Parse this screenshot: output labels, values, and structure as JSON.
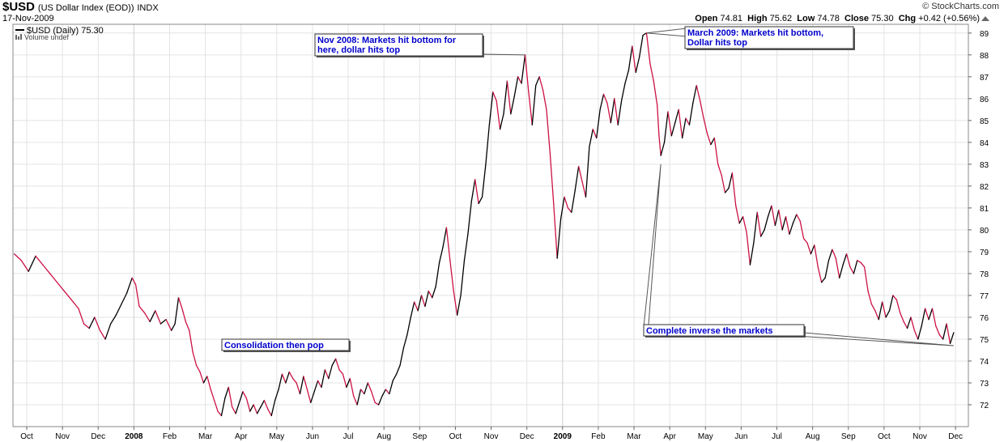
{
  "header": {
    "symbol": "$USD",
    "name": "(US Dollar Index (EOD))",
    "exchange": "INDX",
    "date": "17-Nov-2009",
    "credit": "© StockCharts.com",
    "ohlc": {
      "open_label": "Open",
      "open": "74.81",
      "high_label": "High",
      "high": "75.62",
      "low_label": "Low",
      "low": "74.78",
      "close_label": "Close",
      "close": "75.30",
      "chg_label": "Chg",
      "chg": "+0.42 (+0.56%)"
    }
  },
  "legend": {
    "series_label": "$USD (Daily) 75.30",
    "volume_label": "Volume undef"
  },
  "chart_data": {
    "type": "line",
    "title": "$USD (US Dollar Index (EOD)) INDX",
    "xlabel": "",
    "ylabel": "",
    "ylim": [
      71.0,
      89.4
    ],
    "y_ticks": [
      72,
      73,
      74,
      75,
      76,
      77,
      78,
      79,
      80,
      81,
      82,
      83,
      84,
      85,
      86,
      87,
      88,
      89
    ],
    "x_ticks": [
      {
        "label": "Oct",
        "month": 0,
        "bold": false
      },
      {
        "label": "Nov",
        "month": 1,
        "bold": false
      },
      {
        "label": "Dec",
        "month": 2,
        "bold": false
      },
      {
        "label": "2008",
        "month": 3,
        "bold": true
      },
      {
        "label": "Feb",
        "month": 4,
        "bold": false
      },
      {
        "label": "Mar",
        "month": 5,
        "bold": false
      },
      {
        "label": "Apr",
        "month": 6,
        "bold": false
      },
      {
        "label": "May",
        "month": 7,
        "bold": false
      },
      {
        "label": "Jun",
        "month": 8,
        "bold": false
      },
      {
        "label": "Jul",
        "month": 9,
        "bold": false
      },
      {
        "label": "Aug",
        "month": 10,
        "bold": false
      },
      {
        "label": "Sep",
        "month": 11,
        "bold": false
      },
      {
        "label": "Oct",
        "month": 12,
        "bold": false
      },
      {
        "label": "Nov",
        "month": 13,
        "bold": false
      },
      {
        "label": "Dec",
        "month": 14,
        "bold": false
      },
      {
        "label": "2009",
        "month": 15,
        "bold": true
      },
      {
        "label": "Feb",
        "month": 16,
        "bold": false
      },
      {
        "label": "Mar",
        "month": 17,
        "bold": false
      },
      {
        "label": "Apr",
        "month": 18,
        "bold": false
      },
      {
        "label": "May",
        "month": 19,
        "bold": false
      },
      {
        "label": "Jun",
        "month": 20,
        "bold": false
      },
      {
        "label": "Jul",
        "month": 21,
        "bold": false
      },
      {
        "label": "Aug",
        "month": 22,
        "bold": false
      },
      {
        "label": "Sep",
        "month": 23,
        "bold": false
      },
      {
        "label": "Oct",
        "month": 24,
        "bold": false
      },
      {
        "label": "Nov",
        "month": 25,
        "bold": false
      },
      {
        "label": "Dec",
        "month": 26,
        "bold": false
      }
    ],
    "series": [
      {
        "name": "$USD (Daily)",
        "color_up": "#000000",
        "color_down": "#cc1144",
        "points": [
          [
            -0.35,
            78.9
          ],
          [
            -0.15,
            78.6
          ],
          [
            0.05,
            78.1
          ],
          [
            0.25,
            78.8
          ],
          [
            0.45,
            78.4
          ],
          [
            0.65,
            78.0
          ],
          [
            0.85,
            77.6
          ],
          [
            1.05,
            77.2
          ],
          [
            1.25,
            76.8
          ],
          [
            1.45,
            76.4
          ],
          [
            1.6,
            75.7
          ],
          [
            1.75,
            75.5
          ],
          [
            1.9,
            76.0
          ],
          [
            2.05,
            75.4
          ],
          [
            2.2,
            75.0
          ],
          [
            2.35,
            75.7
          ],
          [
            2.5,
            76.1
          ],
          [
            2.65,
            76.6
          ],
          [
            2.8,
            77.1
          ],
          [
            2.95,
            77.8
          ],
          [
            3.05,
            77.5
          ],
          [
            3.15,
            76.5
          ],
          [
            3.3,
            76.2
          ],
          [
            3.45,
            75.8
          ],
          [
            3.6,
            76.3
          ],
          [
            3.75,
            75.7
          ],
          [
            3.9,
            75.9
          ],
          [
            4.05,
            75.4
          ],
          [
            4.15,
            75.7
          ],
          [
            4.25,
            76.9
          ],
          [
            4.35,
            76.4
          ],
          [
            4.45,
            75.8
          ],
          [
            4.55,
            75.4
          ],
          [
            4.65,
            74.4
          ],
          [
            4.75,
            73.8
          ],
          [
            4.85,
            73.5
          ],
          [
            4.95,
            73.0
          ],
          [
            5.05,
            73.3
          ],
          [
            5.15,
            72.7
          ],
          [
            5.25,
            72.2
          ],
          [
            5.35,
            71.7
          ],
          [
            5.45,
            71.5
          ],
          [
            5.55,
            72.3
          ],
          [
            5.65,
            72.8
          ],
          [
            5.75,
            71.9
          ],
          [
            5.85,
            71.6
          ],
          [
            5.95,
            72.1
          ],
          [
            6.05,
            72.6
          ],
          [
            6.15,
            72.3
          ],
          [
            6.25,
            71.7
          ],
          [
            6.35,
            72.0
          ],
          [
            6.45,
            71.6
          ],
          [
            6.55,
            71.9
          ],
          [
            6.65,
            72.2
          ],
          [
            6.75,
            71.8
          ],
          [
            6.85,
            71.5
          ],
          [
            6.95,
            72.2
          ],
          [
            7.05,
            72.7
          ],
          [
            7.15,
            73.4
          ],
          [
            7.25,
            73.0
          ],
          [
            7.35,
            73.5
          ],
          [
            7.45,
            73.2
          ],
          [
            7.55,
            73.0
          ],
          [
            7.65,
            72.5
          ],
          [
            7.75,
            73.3
          ],
          [
            7.85,
            72.7
          ],
          [
            7.95,
            72.1
          ],
          [
            8.05,
            72.6
          ],
          [
            8.15,
            73.1
          ],
          [
            8.25,
            72.8
          ],
          [
            8.35,
            73.6
          ],
          [
            8.45,
            73.2
          ],
          [
            8.55,
            73.8
          ],
          [
            8.65,
            74.1
          ],
          [
            8.75,
            73.6
          ],
          [
            8.85,
            73.4
          ],
          [
            8.95,
            72.8
          ],
          [
            9.05,
            73.2
          ],
          [
            9.15,
            72.4
          ],
          [
            9.25,
            72.0
          ],
          [
            9.35,
            72.7
          ],
          [
            9.45,
            72.5
          ],
          [
            9.55,
            73.0
          ],
          [
            9.65,
            72.6
          ],
          [
            9.75,
            72.1
          ],
          [
            9.85,
            72.0
          ],
          [
            9.95,
            72.4
          ],
          [
            10.05,
            72.7
          ],
          [
            10.15,
            72.5
          ],
          [
            10.25,
            73.1
          ],
          [
            10.35,
            73.4
          ],
          [
            10.45,
            73.8
          ],
          [
            10.55,
            74.6
          ],
          [
            10.65,
            75.2
          ],
          [
            10.75,
            76.0
          ],
          [
            10.85,
            76.7
          ],
          [
            10.95,
            76.3
          ],
          [
            11.05,
            77.0
          ],
          [
            11.15,
            76.5
          ],
          [
            11.25,
            77.2
          ],
          [
            11.35,
            76.9
          ],
          [
            11.45,
            77.4
          ],
          [
            11.55,
            78.5
          ],
          [
            11.65,
            79.2
          ],
          [
            11.75,
            80.1
          ],
          [
            11.85,
            78.6
          ],
          [
            11.95,
            77.2
          ],
          [
            12.05,
            76.1
          ],
          [
            12.15,
            77.0
          ],
          [
            12.25,
            78.6
          ],
          [
            12.35,
            79.8
          ],
          [
            12.45,
            81.3
          ],
          [
            12.55,
            82.3
          ],
          [
            12.65,
            81.2
          ],
          [
            12.75,
            81.5
          ],
          [
            12.85,
            83.0
          ],
          [
            12.95,
            84.8
          ],
          [
            13.05,
            86.3
          ],
          [
            13.15,
            85.9
          ],
          [
            13.25,
            84.6
          ],
          [
            13.35,
            85.3
          ],
          [
            13.45,
            86.8
          ],
          [
            13.55,
            85.3
          ],
          [
            13.65,
            86.1
          ],
          [
            13.75,
            87.0
          ],
          [
            13.85,
            86.7
          ],
          [
            13.95,
            88.0
          ],
          [
            14.05,
            86.3
          ],
          [
            14.15,
            84.8
          ],
          [
            14.25,
            86.6
          ],
          [
            14.35,
            87.0
          ],
          [
            14.45,
            86.4
          ],
          [
            14.55,
            85.5
          ],
          [
            14.65,
            83.5
          ],
          [
            14.75,
            81.2
          ],
          [
            14.85,
            78.7
          ],
          [
            14.95,
            80.5
          ],
          [
            15.05,
            81.5
          ],
          [
            15.15,
            81.0
          ],
          [
            15.25,
            80.8
          ],
          [
            15.35,
            81.8
          ],
          [
            15.45,
            82.9
          ],
          [
            15.55,
            82.2
          ],
          [
            15.65,
            81.5
          ],
          [
            15.75,
            83.8
          ],
          [
            15.85,
            84.6
          ],
          [
            15.95,
            84.2
          ],
          [
            16.05,
            85.5
          ],
          [
            16.15,
            86.2
          ],
          [
            16.25,
            85.8
          ],
          [
            16.35,
            84.9
          ],
          [
            16.45,
            86.0
          ],
          [
            16.55,
            84.8
          ],
          [
            16.65,
            85.9
          ],
          [
            16.75,
            86.7
          ],
          [
            16.85,
            87.3
          ],
          [
            16.95,
            88.4
          ],
          [
            17.05,
            87.2
          ],
          [
            17.15,
            87.9
          ],
          [
            17.25,
            88.9
          ],
          [
            17.35,
            89.0
          ],
          [
            17.45,
            87.6
          ],
          [
            17.55,
            86.8
          ],
          [
            17.65,
            85.7
          ],
          [
            17.7,
            84.3
          ],
          [
            17.75,
            83.4
          ],
          [
            17.85,
            84.0
          ],
          [
            17.95,
            85.4
          ],
          [
            18.05,
            84.3
          ],
          [
            18.15,
            84.9
          ],
          [
            18.25,
            85.5
          ],
          [
            18.35,
            84.2
          ],
          [
            18.45,
            85.1
          ],
          [
            18.55,
            84.8
          ],
          [
            18.65,
            85.8
          ],
          [
            18.75,
            86.6
          ],
          [
            18.85,
            85.9
          ],
          [
            18.95,
            85.1
          ],
          [
            19.05,
            84.4
          ],
          [
            19.15,
            83.9
          ],
          [
            19.25,
            84.2
          ],
          [
            19.35,
            83.0
          ],
          [
            19.45,
            82.5
          ],
          [
            19.55,
            81.7
          ],
          [
            19.65,
            81.9
          ],
          [
            19.75,
            82.6
          ],
          [
            19.85,
            81.1
          ],
          [
            19.95,
            80.3
          ],
          [
            20.05,
            80.6
          ],
          [
            20.15,
            79.9
          ],
          [
            20.25,
            78.4
          ],
          [
            20.35,
            79.4
          ],
          [
            20.45,
            80.8
          ],
          [
            20.55,
            79.7
          ],
          [
            20.65,
            80.0
          ],
          [
            20.75,
            80.6
          ],
          [
            20.85,
            81.1
          ],
          [
            20.95,
            80.2
          ],
          [
            21.05,
            80.9
          ],
          [
            21.15,
            80.0
          ],
          [
            21.25,
            80.6
          ],
          [
            21.35,
            79.8
          ],
          [
            21.45,
            80.3
          ],
          [
            21.55,
            80.7
          ],
          [
            21.65,
            80.4
          ],
          [
            21.75,
            79.6
          ],
          [
            21.85,
            79.4
          ],
          [
            21.95,
            78.9
          ],
          [
            22.05,
            79.3
          ],
          [
            22.15,
            78.3
          ],
          [
            22.25,
            77.6
          ],
          [
            22.35,
            77.8
          ],
          [
            22.45,
            78.6
          ],
          [
            22.55,
            79.1
          ],
          [
            22.65,
            78.7
          ],
          [
            22.75,
            77.8
          ],
          [
            22.85,
            78.4
          ],
          [
            22.95,
            78.9
          ],
          [
            23.05,
            78.3
          ],
          [
            23.15,
            78.0
          ],
          [
            23.25,
            78.6
          ],
          [
            23.35,
            78.5
          ],
          [
            23.45,
            78.3
          ],
          [
            23.55,
            77.2
          ],
          [
            23.65,
            76.6
          ],
          [
            23.75,
            76.3
          ],
          [
            23.85,
            75.9
          ],
          [
            23.95,
            76.7
          ],
          [
            24.05,
            76.0
          ],
          [
            24.15,
            76.3
          ],
          [
            24.25,
            77.0
          ],
          [
            24.35,
            76.8
          ],
          [
            24.45,
            76.2
          ],
          [
            24.55,
            75.8
          ],
          [
            24.65,
            75.5
          ],
          [
            24.75,
            76.0
          ],
          [
            24.85,
            75.4
          ],
          [
            24.95,
            75.0
          ],
          [
            25.05,
            75.6
          ],
          [
            25.15,
            76.4
          ],
          [
            25.25,
            75.9
          ],
          [
            25.35,
            76.4
          ],
          [
            25.45,
            75.6
          ],
          [
            25.55,
            75.2
          ],
          [
            25.65,
            75.0
          ],
          [
            25.75,
            75.7
          ],
          [
            25.85,
            74.8
          ],
          [
            25.95,
            75.3
          ]
        ]
      }
    ],
    "annotations": [
      {
        "lines": [
          "Nov 2008: Markets hit bottom for",
          "here, dollar hits top"
        ],
        "target": [
          13.95,
          88.0
        ]
      },
      {
        "lines": [
          "March 2009: Markets hit bottom,",
          "Dollar hits top"
        ],
        "target": [
          17.35,
          89.0
        ]
      },
      {
        "lines": [
          "Consolidation then pop"
        ],
        "target": null
      },
      {
        "lines": [
          "Complete inverse the markets"
        ],
        "target": [
          25.95,
          74.7
        ],
        "target2": [
          17.75,
          83.0
        ]
      }
    ]
  }
}
